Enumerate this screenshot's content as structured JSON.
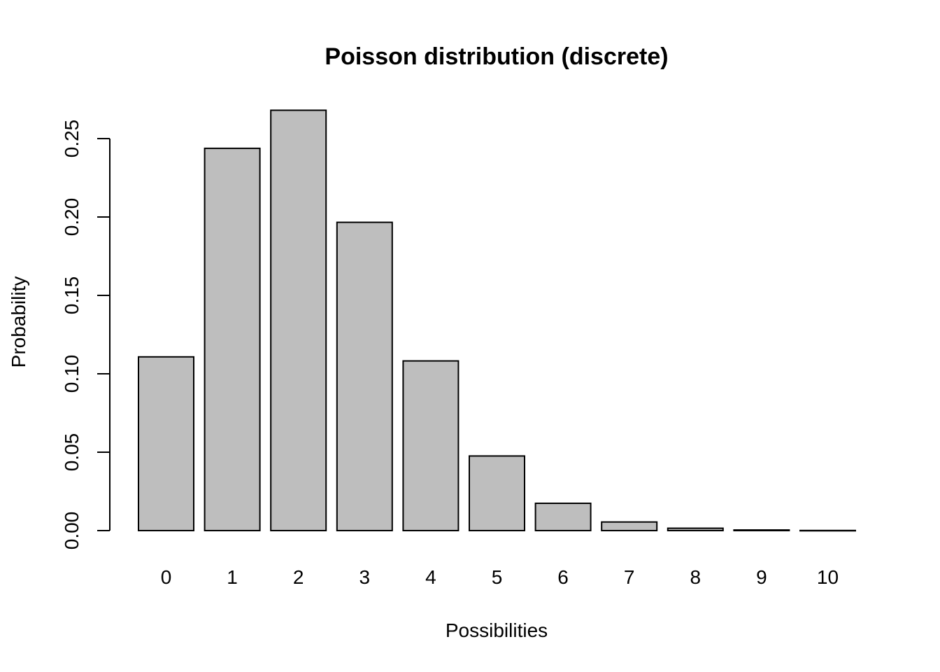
{
  "chart_data": {
    "type": "bar",
    "title": "Poisson distribution (discrete)",
    "xlabel": "Possibilities",
    "ylabel": "Probability",
    "categories": [
      "0",
      "1",
      "2",
      "3",
      "4",
      "5",
      "6",
      "7",
      "8",
      "9",
      "10"
    ],
    "values": [
      0.1108,
      0.2438,
      0.2681,
      0.1966,
      0.1082,
      0.0476,
      0.0174,
      0.0055,
      0.0015,
      0.0004,
      0.0001
    ],
    "ylim": [
      0,
      0.25
    ],
    "yticks": [
      "0.00",
      "0.05",
      "0.10",
      "0.15",
      "0.20",
      "0.25"
    ],
    "grid": false,
    "colors": {
      "bar_fill": "#bebebe",
      "bar_stroke": "#000000"
    }
  }
}
